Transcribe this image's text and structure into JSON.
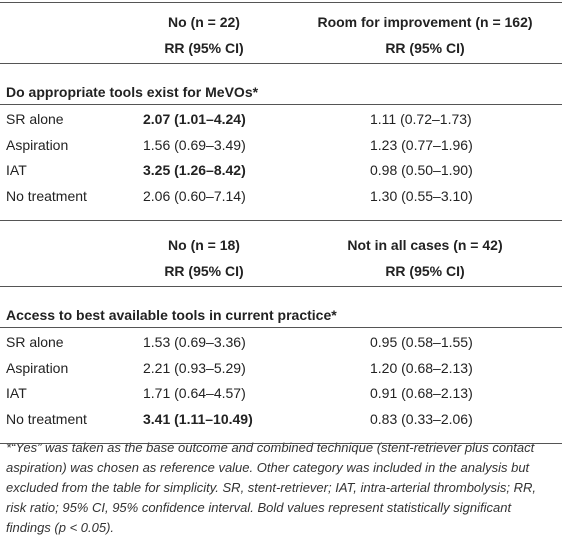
{
  "sections": [
    {
      "headers": [
        {
          "top": "No (n = 22)",
          "sub": "RR (95% CI)"
        },
        {
          "top": "Room for improvement (n = 162)",
          "sub": "RR (95% CI)"
        }
      ],
      "title": "Do appropriate tools exist for MeVOs*",
      "rows": [
        {
          "label": "SR alone",
          "values": [
            "2.07 (1.01–4.24)",
            "1.11 (0.72–1.73)"
          ],
          "bold": [
            true,
            false
          ]
        },
        {
          "label": "Aspiration",
          "values": [
            "1.56 (0.69–3.49)",
            "1.23 (0.77–1.96)"
          ],
          "bold": [
            false,
            false
          ]
        },
        {
          "label": "IAT",
          "values": [
            "3.25 (1.26–8.42)",
            "0.98 (0.50–1.90)"
          ],
          "bold": [
            true,
            false
          ]
        },
        {
          "label": "No treatment",
          "values": [
            "2.06 (0.60–7.14)",
            "1.30 (0.55–3.10)"
          ],
          "bold": [
            false,
            false
          ]
        }
      ]
    },
    {
      "headers": [
        {
          "top": "No (n = 18)",
          "sub": "RR (95% CI)"
        },
        {
          "top": "Not in all cases (n = 42)",
          "sub": "RR (95% CI)"
        }
      ],
      "title": "Access to best available tools in current practice*",
      "rows": [
        {
          "label": "SR alone",
          "values": [
            "1.53 (0.69–3.36)",
            "0.95 (0.58–1.55)"
          ],
          "bold": [
            false,
            false
          ]
        },
        {
          "label": "Aspiration",
          "values": [
            "2.21 (0.93–5.29)",
            "1.20 (0.68–2.13)"
          ],
          "bold": [
            false,
            false
          ]
        },
        {
          "label": "IAT",
          "values": [
            "1.71 (0.64–4.57)",
            "0.91 (0.68–2.13)"
          ],
          "bold": [
            false,
            false
          ]
        },
        {
          "label": "No treatment",
          "values": [
            "3.41 (1.11–10.49)",
            "0.83 (0.33–2.06)"
          ],
          "bold": [
            true,
            false
          ]
        }
      ]
    }
  ],
  "footnote": "*“Yes” was taken as the base outcome and combined technique (stent-retriever plus contact aspiration) was chosen as reference value. Other category was included in the analysis but excluded from the table for simplicity. SR, stent-retriever; IAT, intra-arterial thrombolysis; RR, risk ratio; 95% CI, 95% confidence interval. Bold values represent statistically significant findings (p < 0.05)."
}
